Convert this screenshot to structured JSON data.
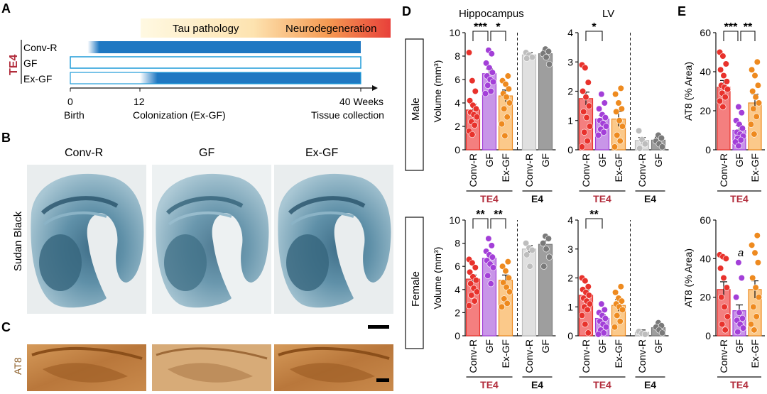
{
  "panels": {
    "a": "A",
    "b": "B",
    "c": "C",
    "d": "D",
    "e": "E"
  },
  "timeline": {
    "genotype": "TE4",
    "groups": [
      "Conv-R",
      "GF",
      "Ex-GF"
    ],
    "banner_tau": "Tau pathology",
    "banner_neuro": "Neurodegeneration",
    "ticks": [
      {
        "value": "0",
        "label": "Birth"
      },
      {
        "value": "12",
        "label": "Colonization (Ex-GF)"
      },
      {
        "value": "40 Weeks",
        "label": "Tissue collection"
      }
    ],
    "colors": {
      "bar": "#1f78c2",
      "banner_start": "#fff8dd",
      "banner_end": "#e8453c"
    }
  },
  "histology": {
    "columns": [
      "Conv-R",
      "GF",
      "Ex-GF"
    ],
    "stain_sudan": "Sudan Black",
    "stain_at8": "AT8"
  },
  "rows": {
    "male": "Male",
    "female": "Female"
  },
  "axes": {
    "volume_ylabel": "Volume (mm³)",
    "at8_ylabel": "AT8  (% Area)",
    "hippocampus_title": "Hippocampus",
    "lv_title": "LV",
    "te4": "TE4",
    "e4": "E4"
  },
  "colors": {
    "convr": "#f47f7f",
    "convr_pt": "#e8322c",
    "gf": "#c895e8",
    "gf_pt": "#a33fd8",
    "exgf": "#fbc98a",
    "exgf_pt": "#ee8a1f",
    "e4convr": "#e0e0e0",
    "e4convr_pt": "#bdbdbd",
    "e4gf": "#9e9e9e",
    "e4gf_pt": "#7a7a7a",
    "te4_label": "#b22d3c"
  },
  "chart_data": [
    {
      "id": "male-hippocampus",
      "type": "bar",
      "title": "Hippocampus",
      "ylabel": "Volume (mm³)",
      "ylim": [
        0,
        10
      ],
      "yticks": [
        0,
        2,
        4,
        6,
        8,
        10
      ],
      "categories": [
        "Conv-R",
        "GF",
        "Ex-GF",
        "Conv-R",
        "GF"
      ],
      "groups": [
        "TE4",
        "TE4",
        "TE4",
        "E4",
        "E4"
      ],
      "values": [
        3.4,
        6.5,
        4.6,
        8.1,
        8.2
      ],
      "errors": [
        0.5,
        0.4,
        0.5,
        0.2,
        0.3
      ],
      "points": [
        [
          8.3,
          5.9,
          5.0,
          4.2,
          3.8,
          3.5,
          3.2,
          3.0,
          2.8,
          2.4,
          2.1,
          1.6,
          1.3
        ],
        [
          8.5,
          8.2,
          7.4,
          7.0,
          6.6,
          6.3,
          6.0,
          5.8,
          5.5,
          5.0,
          4.8
        ],
        [
          6.3,
          5.9,
          5.6,
          5.2,
          4.8,
          4.5,
          4.0,
          3.5,
          2.8,
          2.2,
          1.2
        ],
        [
          8.3,
          8.1,
          7.9,
          7.8
        ],
        [
          8.6,
          8.4,
          8.2,
          7.9,
          7.3
        ]
      ],
      "sig": [
        {
          "from": 0,
          "to": 1,
          "label": "***"
        },
        {
          "from": 1,
          "to": 2,
          "label": "*"
        }
      ]
    },
    {
      "id": "male-lv",
      "type": "bar",
      "title": "LV",
      "ylabel": "",
      "ylim": [
        0,
        4
      ],
      "yticks": [
        0,
        1,
        2,
        3,
        4
      ],
      "categories": [
        "Conv-R",
        "GF",
        "Ex-GF",
        "Conv-R",
        "GF"
      ],
      "groups": [
        "TE4",
        "TE4",
        "TE4",
        "E4",
        "E4"
      ],
      "values": [
        1.75,
        1.05,
        1.05,
        0.32,
        0.33
      ],
      "errors": [
        0.22,
        0.12,
        0.25,
        0.1,
        0.1
      ],
      "points": [
        [
          2.9,
          2.8,
          2.3,
          2.0,
          1.8,
          1.5,
          1.3,
          1.1,
          0.8,
          0.6,
          0.3,
          0.1
        ],
        [
          1.9,
          1.6,
          1.4,
          1.2,
          1.1,
          1.0,
          0.9,
          0.8,
          0.7,
          0.6,
          0.5
        ],
        [
          2.1,
          1.9,
          1.6,
          1.4,
          1.3,
          1.0,
          0.8,
          0.5,
          0.3,
          0.1
        ],
        [
          0.65,
          0.35,
          0.2,
          0.05
        ],
        [
          0.5,
          0.4,
          0.3,
          0.2,
          0.1
        ]
      ],
      "sig": [
        {
          "from": 0,
          "to": 1,
          "label": "*"
        }
      ]
    },
    {
      "id": "male-at8",
      "type": "bar",
      "title": "",
      "ylabel": "AT8  (% Area)",
      "ylim": [
        0,
        60
      ],
      "yticks": [
        0,
        20,
        40,
        60
      ],
      "categories": [
        "Conv-R",
        "GF",
        "Ex-GF"
      ],
      "groups": [
        "TE4",
        "TE4",
        "TE4"
      ],
      "values": [
        32,
        10,
        24
      ],
      "errors": [
        3.5,
        2.5,
        4.5
      ],
      "points": [
        [
          50,
          48,
          44,
          41,
          38,
          35,
          33,
          32,
          31,
          29,
          27,
          25,
          22
        ],
        [
          22,
          19,
          15,
          13,
          11,
          9,
          8,
          7,
          6,
          5,
          4,
          2
        ],
        [
          45,
          41,
          38,
          33,
          30,
          27,
          24,
          21,
          17,
          13,
          8
        ]
      ],
      "sig": [
        {
          "from": 0,
          "to": 1,
          "label": "***"
        },
        {
          "from": 1,
          "to": 2,
          "label": "**"
        }
      ]
    },
    {
      "id": "female-hippocampus",
      "type": "bar",
      "title": "",
      "ylabel": "Volume (mm³)",
      "ylim": [
        0,
        10
      ],
      "yticks": [
        0,
        2,
        4,
        6,
        8,
        10
      ],
      "categories": [
        "Conv-R",
        "GF",
        "Ex-GF",
        "Conv-R",
        "GF"
      ],
      "groups": [
        "TE4",
        "TE4",
        "TE4",
        "E4",
        "E4"
      ],
      "values": [
        4.9,
        6.7,
        4.8,
        7.5,
        7.9
      ],
      "errors": [
        0.35,
        0.35,
        0.45,
        0.3,
        0.3
      ],
      "points": [
        [
          6.6,
          6.3,
          5.9,
          5.5,
          5.1,
          4.8,
          4.5,
          4.1,
          3.8,
          3.5,
          3.0,
          2.6
        ],
        [
          8.4,
          7.8,
          7.3,
          7.0,
          6.8,
          6.5,
          6.2,
          5.9,
          5.2,
          4.5
        ],
        [
          6.4,
          6.0,
          5.6,
          5.0,
          4.6,
          4.2,
          3.8,
          3.2,
          2.8,
          2.5
        ],
        [
          8.0,
          7.6,
          7.4,
          7.0,
          6.0
        ],
        [
          8.6,
          8.4,
          8.0,
          7.5,
          6.8,
          6.0
        ]
      ],
      "sig": [
        {
          "from": 0,
          "to": 1,
          "label": "**"
        },
        {
          "from": 1,
          "to": 2,
          "label": "**"
        }
      ]
    },
    {
      "id": "female-lv",
      "type": "bar",
      "title": "",
      "ylabel": "",
      "ylim": [
        0,
        4
      ],
      "yticks": [
        0,
        1,
        2,
        3,
        4
      ],
      "categories": [
        "Conv-R",
        "GF",
        "Ex-GF",
        "Conv-R",
        "GF"
      ],
      "groups": [
        "TE4",
        "TE4",
        "TE4",
        "E4",
        "E4"
      ],
      "values": [
        1.4,
        0.6,
        1.05,
        0.12,
        0.28
      ],
      "errors": [
        0.18,
        0.12,
        0.2,
        0.08,
        0.1
      ],
      "points": [
        [
          2.0,
          1.9,
          1.7,
          1.6,
          1.5,
          1.4,
          1.3,
          1.2,
          1.1,
          1.0,
          0.9,
          0.7,
          0.4,
          0.1
        ],
        [
          1.1,
          0.9,
          0.8,
          0.7,
          0.6,
          0.5,
          0.4,
          0.3,
          0.2,
          0.1,
          0.05
        ],
        [
          1.7,
          1.5,
          1.3,
          1.2,
          1.1,
          1.0,
          0.9,
          0.7,
          0.5,
          0.3
        ],
        [
          0.15,
          0.08,
          0.05
        ],
        [
          0.45,
          0.35,
          0.3,
          0.2,
          0.1
        ]
      ],
      "sig": [
        {
          "from": 0,
          "to": 1,
          "label": "**"
        }
      ]
    },
    {
      "id": "female-at8",
      "type": "bar",
      "title": "",
      "ylabel": "AT8  (% Area)",
      "ylim": [
        0,
        60
      ],
      "yticks": [
        0,
        20,
        40,
        60
      ],
      "categories": [
        "Conv-R",
        "GF",
        "Ex-GF"
      ],
      "groups": [
        "TE4",
        "TE4",
        "TE4"
      ],
      "values": [
        24,
        13,
        24
      ],
      "errors": [
        4.0,
        3.0,
        4.5
      ],
      "points": [
        [
          42,
          41,
          40,
          35,
          30,
          25,
          20,
          15,
          10,
          6,
          3
        ],
        [
          38,
          30,
          20,
          12,
          9,
          8,
          6,
          4,
          2
        ],
        [
          52,
          47,
          43,
          38,
          30,
          25,
          20,
          15,
          10,
          6,
          3
        ]
      ],
      "note_label": "a",
      "note_bar": 1,
      "sig": []
    }
  ]
}
